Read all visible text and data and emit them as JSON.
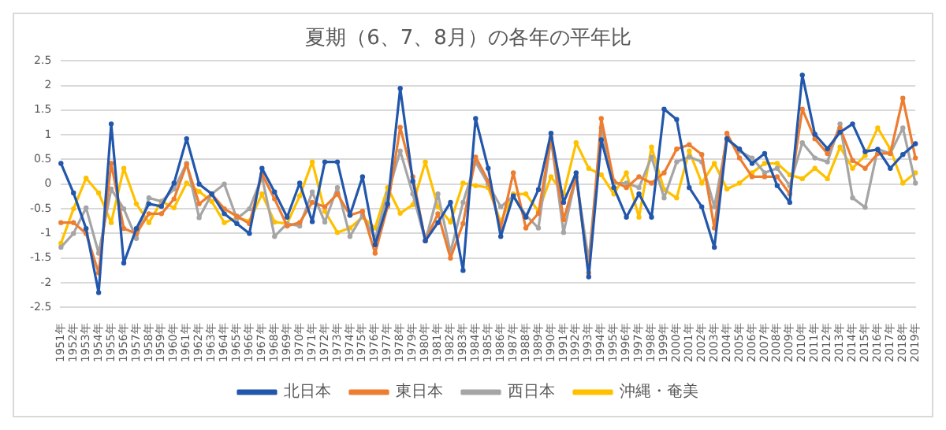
{
  "chart_data": {
    "type": "line",
    "title": "夏期（6、7、8月）の各年の平年比",
    "categories": [
      "1951年",
      "1952年",
      "1953年",
      "1954年",
      "1955年",
      "1956年",
      "1957年",
      "1958年",
      "1959年",
      "1960年",
      "1961年",
      "1962年",
      "1963年",
      "1964年",
      "1965年",
      "1966年",
      "1967年",
      "1968年",
      "1969年",
      "1970年",
      "1971年",
      "1972年",
      "1973年",
      "1974年",
      "1975年",
      "1976年",
      "1977年",
      "1978年",
      "1979年",
      "1980年",
      "1981年",
      "1982年",
      "1983年",
      "1984年",
      "1985年",
      "1986年",
      "1987年",
      "1988年",
      "1989年",
      "1990年",
      "1991年",
      "1992年",
      "1993年",
      "1994年",
      "1995年",
      "1996年",
      "1997年",
      "1998年",
      "1999年",
      "2000年",
      "2001年",
      "2002年",
      "2003年",
      "2004年",
      "2005年",
      "2006年",
      "2007年",
      "2008年",
      "2009年",
      "2010年",
      "2011年",
      "2012年",
      "2013年",
      "2014年",
      "2015年",
      "2016年",
      "2017年",
      "2018年",
      "2019年"
    ],
    "series": [
      {
        "name": "北日本",
        "color": "#2257ac",
        "values": [
          0.42,
          -0.18,
          -0.9,
          -2.2,
          1.22,
          -1.6,
          -0.9,
          -0.4,
          -0.45,
          0.02,
          0.92,
          0.0,
          -0.2,
          -0.6,
          -0.8,
          -1.0,
          0.32,
          -0.16,
          -0.67,
          0.02,
          -0.76,
          0.45,
          0.45,
          -0.63,
          0.15,
          -1.23,
          -0.4,
          1.94,
          0.06,
          -1.15,
          -0.78,
          -0.37,
          -1.75,
          1.33,
          0.32,
          -1.06,
          -0.24,
          -0.67,
          -0.11,
          1.03,
          -0.37,
          0.23,
          -1.88,
          0.9,
          -0.07,
          -0.67,
          -0.2,
          -0.67,
          1.52,
          1.31,
          -0.07,
          -0.46,
          -1.28,
          0.92,
          0.71,
          0.42,
          0.62,
          -0.03,
          -0.37,
          2.21,
          1.01,
          0.72,
          1.05,
          1.22,
          0.66,
          0.7,
          0.32,
          0.6,
          0.82
        ]
      },
      {
        "name": "東日本",
        "color": "#ed7d31",
        "values": [
          -0.78,
          -0.78,
          -1.0,
          -1.8,
          0.42,
          -0.9,
          -1.0,
          -0.6,
          -0.6,
          -0.3,
          0.4,
          -0.4,
          -0.2,
          -0.5,
          -0.65,
          -0.8,
          0.2,
          -0.3,
          -0.85,
          -0.78,
          -0.37,
          -0.46,
          -0.2,
          -0.63,
          -0.55,
          -1.4,
          -0.45,
          1.15,
          0.15,
          -1.15,
          -0.6,
          -1.5,
          -0.8,
          0.55,
          0.06,
          -0.89,
          0.23,
          -0.89,
          -0.59,
          0.94,
          -0.72,
          0.15,
          -1.8,
          1.33,
          0.06,
          -0.07,
          0.15,
          0.02,
          0.23,
          0.71,
          0.8,
          0.6,
          -0.89,
          1.03,
          0.53,
          0.15,
          0.15,
          0.15,
          -0.2,
          1.52,
          0.92,
          0.62,
          1.14,
          0.48,
          0.32,
          0.62,
          0.62,
          1.74,
          0.53
        ]
      },
      {
        "name": "西日本",
        "color": "#a5a5a5",
        "values": [
          -1.28,
          -1.0,
          -0.48,
          -1.4,
          -0.1,
          -0.5,
          -1.1,
          -0.28,
          -0.35,
          -0.1,
          0.42,
          -0.68,
          -0.2,
          0.0,
          -0.7,
          -0.5,
          0.15,
          -1.06,
          -0.8,
          -0.85,
          -0.16,
          -0.77,
          -0.07,
          -1.06,
          -0.63,
          -1.1,
          -0.2,
          0.67,
          -0.2,
          -1.15,
          -0.2,
          -1.38,
          -0.37,
          0.45,
          0.0,
          -0.46,
          -0.24,
          -0.63,
          -0.89,
          0.92,
          -0.98,
          0.15,
          -1.55,
          1.14,
          0.02,
          0.02,
          -0.07,
          0.55,
          -0.28,
          0.45,
          0.55,
          0.45,
          -0.46,
          0.92,
          0.67,
          0.53,
          0.23,
          0.32,
          -0.03,
          0.84,
          0.53,
          0.45,
          1.22,
          -0.28,
          -0.47,
          0.71,
          0.62,
          1.14,
          0.02
        ]
      },
      {
        "name": "沖縄・奄美",
        "color": "#ffc000",
        "values": [
          -1.2,
          -0.5,
          0.12,
          -0.18,
          -0.78,
          0.32,
          -0.4,
          -0.78,
          -0.35,
          -0.48,
          0.02,
          -0.15,
          -0.35,
          -0.78,
          -0.68,
          -0.75,
          -0.2,
          -0.77,
          -0.8,
          -0.24,
          0.45,
          -0.55,
          -0.98,
          -0.89,
          -0.67,
          -0.89,
          -0.07,
          -0.59,
          -0.42,
          0.45,
          -0.46,
          -0.77,
          0.02,
          -0.03,
          -0.07,
          -0.77,
          -0.2,
          -0.2,
          -0.55,
          0.15,
          -0.2,
          0.84,
          0.32,
          0.19,
          -0.2,
          0.23,
          -0.67,
          0.75,
          -0.11,
          -0.28,
          0.67,
          0.02,
          0.42,
          -0.1,
          0.02,
          0.23,
          0.42,
          0.42,
          0.19,
          0.11,
          0.32,
          0.11,
          0.75,
          0.32,
          0.58,
          1.14,
          0.71,
          0.02,
          0.23
        ]
      }
    ],
    "ylim": [
      -2.5,
      2.5
    ],
    "yticks": [
      -2.5,
      -2,
      -1.5,
      -1,
      -0.5,
      0,
      0.5,
      1,
      1.5,
      2,
      2.5
    ],
    "grid": "y",
    "legend": "bottom",
    "marker": "circle",
    "line_style": "solid"
  }
}
